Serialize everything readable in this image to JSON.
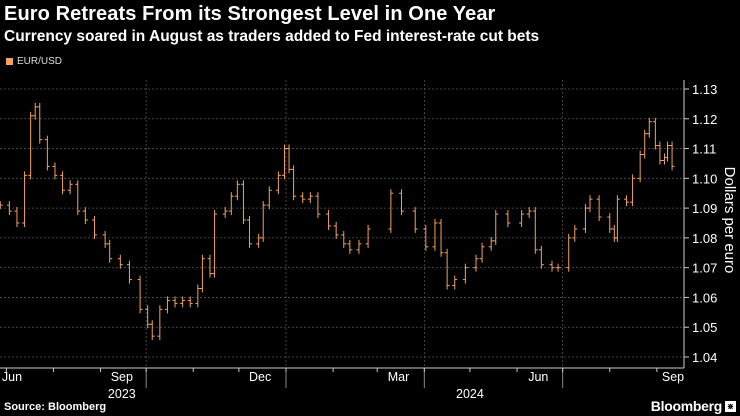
{
  "header": {
    "title": "Euro Retreats From its Strongest Level in One Year",
    "subtitle": "Currency soared in August as traders added to Fed interest-rate cut bets"
  },
  "footer": {
    "source": "Source: Bloomberg",
    "logo": "Bloomberg"
  },
  "colors": {
    "series": "#f0a35e",
    "background": "#000000",
    "grid": "#555555"
  },
  "chart_data": {
    "type": "ohlc",
    "title": "Euro Retreats From its Strongest Level in One Year",
    "subtitle": "Currency soared in August as traders added to Fed interest-rate cut bets",
    "ylabel": "Dollars per euro",
    "ylim": [
      1.04,
      1.13
    ],
    "yticks": [
      "1.04",
      "1.05",
      "1.06",
      "1.07",
      "1.08",
      "1.09",
      "1.10",
      "1.11",
      "1.12",
      "1.13"
    ],
    "xtick_labels": [
      {
        "label": "Jun",
        "date": "2023-06-15"
      },
      {
        "label": "Sep",
        "date": "2023-09-15"
      },
      {
        "label": "Dec",
        "date": "2023-12-15"
      },
      {
        "label": "Mar",
        "date": "2024-03-15"
      },
      {
        "label": "Jun",
        "date": "2024-06-15"
      },
      {
        "label": "Sep",
        "date": "2024-09-15"
      }
    ],
    "year_labels": [
      {
        "label": "2023",
        "date": "2023-09-15"
      },
      {
        "label": "2024",
        "date": "2024-05-01"
      }
    ],
    "grid": true,
    "legend": "top-left",
    "series": [
      {
        "name": "EUR/USD",
        "points": [
          [
            "2023-06-27",
            1.091
          ],
          [
            "2023-07-03",
            1.089
          ],
          [
            "2023-07-08",
            1.085
          ],
          [
            "2023-07-13",
            1.101
          ],
          [
            "2023-07-17",
            1.121
          ],
          [
            "2023-07-20",
            1.124
          ],
          [
            "2023-07-23",
            1.113
          ],
          [
            "2023-07-28",
            1.104
          ],
          [
            "2023-08-02",
            1.101
          ],
          [
            "2023-08-07",
            1.096
          ],
          [
            "2023-08-12",
            1.098
          ],
          [
            "2023-08-17",
            1.089
          ],
          [
            "2023-08-22",
            1.086
          ],
          [
            "2023-08-28",
            1.081
          ],
          [
            "2023-09-04",
            1.078
          ],
          [
            "2023-09-07",
            1.073
          ],
          [
            "2023-09-14",
            1.071
          ],
          [
            "2023-09-20",
            1.066
          ],
          [
            "2023-09-27",
            1.056
          ],
          [
            "2023-10-02",
            1.051
          ],
          [
            "2023-10-05",
            1.047
          ],
          [
            "2023-10-10",
            1.056
          ],
          [
            "2023-10-15",
            1.059
          ],
          [
            "2023-10-20",
            1.058
          ],
          [
            "2023-10-25",
            1.059
          ],
          [
            "2023-10-30",
            1.058
          ],
          [
            "2023-11-04",
            1.063
          ],
          [
            "2023-11-07",
            1.073
          ],
          [
            "2023-11-12",
            1.068
          ],
          [
            "2023-11-15",
            1.088
          ],
          [
            "2023-11-22",
            1.089
          ],
          [
            "2023-11-26",
            1.094
          ],
          [
            "2023-11-30",
            1.098
          ],
          [
            "2023-12-04",
            1.086
          ],
          [
            "2023-12-08",
            1.078
          ],
          [
            "2023-12-14",
            1.08
          ],
          [
            "2023-12-17",
            1.091
          ],
          [
            "2023-12-21",
            1.096
          ],
          [
            "2023-12-27",
            1.101
          ],
          [
            "2023-12-31",
            1.11
          ],
          [
            "2024-01-03",
            1.103
          ],
          [
            "2024-01-06",
            1.094
          ],
          [
            "2024-01-12",
            1.093
          ],
          [
            "2024-01-17",
            1.094
          ],
          [
            "2024-01-22",
            1.088
          ],
          [
            "2024-01-29",
            1.084
          ],
          [
            "2024-02-03",
            1.081
          ],
          [
            "2024-02-08",
            1.078
          ],
          [
            "2024-02-12",
            1.076
          ],
          [
            "2024-02-18",
            1.078
          ],
          [
            "2024-02-24",
            1.083
          ],
          [
            "2024-03-10",
            1.095
          ],
          [
            "2024-03-17",
            1.089
          ],
          [
            "2024-03-26",
            1.083
          ],
          [
            "2024-04-02",
            1.077
          ],
          [
            "2024-04-08",
            1.085
          ],
          [
            "2024-04-12",
            1.075
          ],
          [
            "2024-04-16",
            1.064
          ],
          [
            "2024-04-21",
            1.066
          ],
          [
            "2024-04-28",
            1.07
          ],
          [
            "2024-05-05",
            1.073
          ],
          [
            "2024-05-09",
            1.077
          ],
          [
            "2024-05-15",
            1.079
          ],
          [
            "2024-05-18",
            1.088
          ],
          [
            "2024-05-26",
            1.085
          ],
          [
            "2024-06-04",
            1.088
          ],
          [
            "2024-06-09",
            1.089
          ],
          [
            "2024-06-13",
            1.076
          ],
          [
            "2024-06-17",
            1.071
          ],
          [
            "2024-06-24",
            1.07
          ],
          [
            "2024-06-28",
            1.07
          ],
          [
            "2024-07-05",
            1.08
          ],
          [
            "2024-07-09",
            1.083
          ],
          [
            "2024-07-16",
            1.09
          ],
          [
            "2024-07-19",
            1.093
          ],
          [
            "2024-07-25",
            1.087
          ],
          [
            "2024-08-01",
            1.083
          ],
          [
            "2024-08-04",
            1.08
          ],
          [
            "2024-08-06",
            1.093
          ],
          [
            "2024-08-12",
            1.092
          ],
          [
            "2024-08-16",
            1.1
          ],
          [
            "2024-08-21",
            1.108
          ],
          [
            "2024-08-24",
            1.115
          ],
          [
            "2024-08-27",
            1.119
          ],
          [
            "2024-08-31",
            1.111
          ],
          [
            "2024-09-03",
            1.106
          ],
          [
            "2024-09-06",
            1.107
          ],
          [
            "2024-09-08",
            1.111
          ],
          [
            "2024-09-11",
            1.104
          ]
        ]
      }
    ]
  }
}
